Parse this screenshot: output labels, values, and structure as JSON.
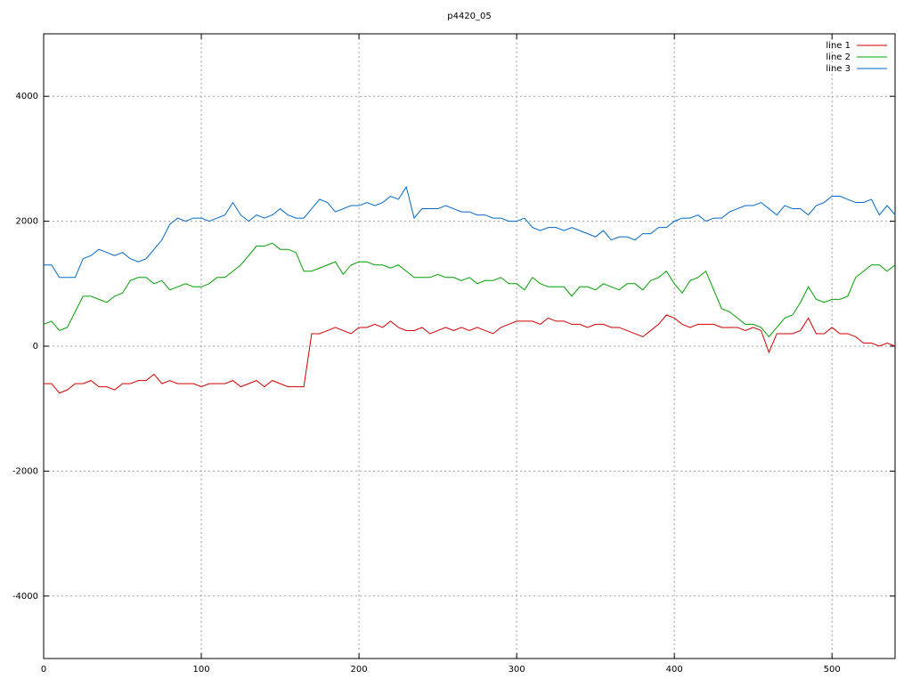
{
  "chart_data": {
    "type": "line",
    "title": "p4420_05",
    "x": [
      0,
      5,
      10,
      15,
      20,
      25,
      30,
      35,
      40,
      45,
      50,
      55,
      60,
      65,
      70,
      75,
      80,
      85,
      90,
      95,
      100,
      105,
      110,
      115,
      120,
      125,
      130,
      135,
      140,
      145,
      150,
      155,
      160,
      165,
      170,
      175,
      180,
      185,
      190,
      195,
      200,
      205,
      210,
      215,
      220,
      225,
      230,
      235,
      240,
      245,
      250,
      255,
      260,
      265,
      270,
      275,
      280,
      285,
      290,
      295,
      300,
      305,
      310,
      315,
      320,
      325,
      330,
      335,
      340,
      345,
      350,
      355,
      360,
      365,
      370,
      375,
      380,
      385,
      390,
      395,
      400,
      405,
      410,
      415,
      420,
      425,
      430,
      435,
      440,
      445,
      450,
      455,
      460,
      465,
      470,
      475,
      480,
      485,
      490,
      495,
      500,
      505,
      510,
      515,
      520,
      525,
      530,
      535,
      540
    ],
    "series": [
      {
        "name": "line 1",
        "color": "#d00000",
        "values": [
          -600,
          -600,
          -750,
          -700,
          -600,
          -600,
          -550,
          -650,
          -650,
          -700,
          -600,
          -600,
          -550,
          -550,
          -450,
          -600,
          -550,
          -600,
          -600,
          -600,
          -650,
          -600,
          -600,
          -600,
          -550,
          -650,
          -600,
          -550,
          -650,
          -550,
          -600,
          -650,
          -650,
          -650,
          200,
          200,
          250,
          300,
          250,
          200,
          300,
          300,
          350,
          300,
          400,
          300,
          250,
          250,
          300,
          200,
          250,
          300,
          250,
          300,
          250,
          300,
          250,
          200,
          300,
          350,
          400,
          400,
          400,
          350,
          450,
          400,
          400,
          350,
          350,
          300,
          350,
          350,
          300,
          300,
          250,
          200,
          150,
          250,
          350,
          500,
          450,
          350,
          300,
          350,
          350,
          350,
          300,
          300,
          300,
          250,
          300,
          250,
          -100,
          200,
          200,
          200,
          250,
          450,
          200,
          200,
          300,
          200,
          200,
          150,
          50,
          50,
          0,
          50,
          0
        ]
      },
      {
        "name": "line 2",
        "color": "#00a000",
        "values": [
          350,
          400,
          250,
          300,
          550,
          800,
          800,
          750,
          700,
          800,
          850,
          1050,
          1100,
          1100,
          1000,
          1050,
          900,
          950,
          1000,
          950,
          950,
          1000,
          1100,
          1100,
          1200,
          1300,
          1450,
          1600,
          1600,
          1650,
          1550,
          1550,
          1500,
          1200,
          1200,
          1250,
          1300,
          1350,
          1150,
          1300,
          1350,
          1350,
          1300,
          1300,
          1250,
          1300,
          1200,
          1100,
          1100,
          1100,
          1150,
          1100,
          1100,
          1050,
          1100,
          1000,
          1050,
          1050,
          1100,
          1000,
          1000,
          900,
          1100,
          1000,
          950,
          950,
          950,
          800,
          950,
          950,
          900,
          1000,
          950,
          900,
          1000,
          1000,
          900,
          1050,
          1100,
          1200,
          1000,
          850,
          1050,
          1100,
          1200,
          900,
          600,
          550,
          450,
          350,
          350,
          300,
          150,
          300,
          450,
          500,
          700,
          950,
          750,
          700,
          750,
          750,
          800,
          1100,
          1200,
          1300,
          1300,
          1200,
          1300
        ]
      },
      {
        "name": "line 3",
        "color": "#0068c8",
        "values": [
          1300,
          1300,
          1100,
          1100,
          1100,
          1400,
          1450,
          1550,
          1500,
          1450,
          1500,
          1400,
          1350,
          1400,
          1550,
          1700,
          1950,
          2050,
          2000,
          2050,
          2050,
          2000,
          2050,
          2100,
          2300,
          2100,
          2000,
          2100,
          2050,
          2100,
          2200,
          2100,
          2050,
          2050,
          2200,
          2350,
          2300,
          2150,
          2200,
          2250,
          2250,
          2300,
          2250,
          2300,
          2400,
          2350,
          2550,
          2050,
          2200,
          2200,
          2200,
          2250,
          2200,
          2150,
          2150,
          2100,
          2100,
          2050,
          2050,
          2000,
          2000,
          2050,
          1900,
          1850,
          1900,
          1900,
          1850,
          1900,
          1850,
          1800,
          1750,
          1850,
          1700,
          1750,
          1750,
          1700,
          1800,
          1800,
          1900,
          1900,
          2000,
          2050,
          2050,
          2100,
          2000,
          2050,
          2050,
          2150,
          2200,
          2250,
          2250,
          2300,
          2200,
          2100,
          2250,
          2200,
          2200,
          2100,
          2250,
          2300,
          2400,
          2400,
          2350,
          2300,
          2300,
          2350,
          2100,
          2250,
          2100
        ]
      }
    ],
    "xlim": [
      0,
      540
    ],
    "ylim": [
      -5000,
      5000
    ],
    "xticks": [
      0,
      100,
      200,
      300,
      400,
      500
    ],
    "yticks": [
      -4000,
      -2000,
      0,
      2000,
      4000
    ],
    "grid": true,
    "legend": "top-right"
  }
}
